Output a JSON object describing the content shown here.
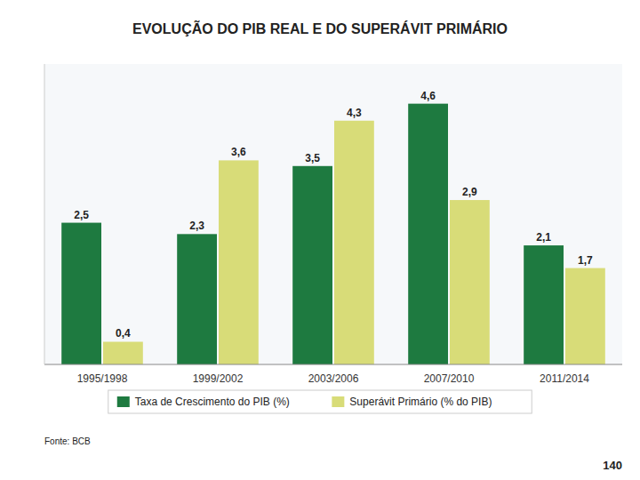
{
  "chart_data": {
    "type": "bar",
    "title": "EVOLUÇÃO DO PIB REAL E DO SUPERÁVIT PRIMÁRIO",
    "categories": [
      "1995/1998",
      "1999/2002",
      "2003/2006",
      "2007/2010",
      "2011/2014"
    ],
    "series": [
      {
        "name": "Taxa de Crescimento do PIB (%)",
        "color": "#1e7a40",
        "values": [
          2.5,
          2.3,
          3.5,
          4.6,
          2.1
        ],
        "value_labels": [
          "2,5",
          "2,3",
          "3,5",
          "4,6",
          "2,1"
        ]
      },
      {
        "name": "Superávit Primário (% do PIB)",
        "color": "#d8dc78",
        "values": [
          0.4,
          3.6,
          4.3,
          2.9,
          1.7
        ],
        "value_labels": [
          "0,4",
          "3,6",
          "4,3",
          "2,9",
          "1,7"
        ]
      }
    ],
    "ylim": [
      0,
      5.3
    ],
    "grid": false,
    "legend": "bottom",
    "data_labels": true,
    "tick_labels": "x",
    "annotations": [
      "Fonte: BCB",
      "140"
    ]
  }
}
